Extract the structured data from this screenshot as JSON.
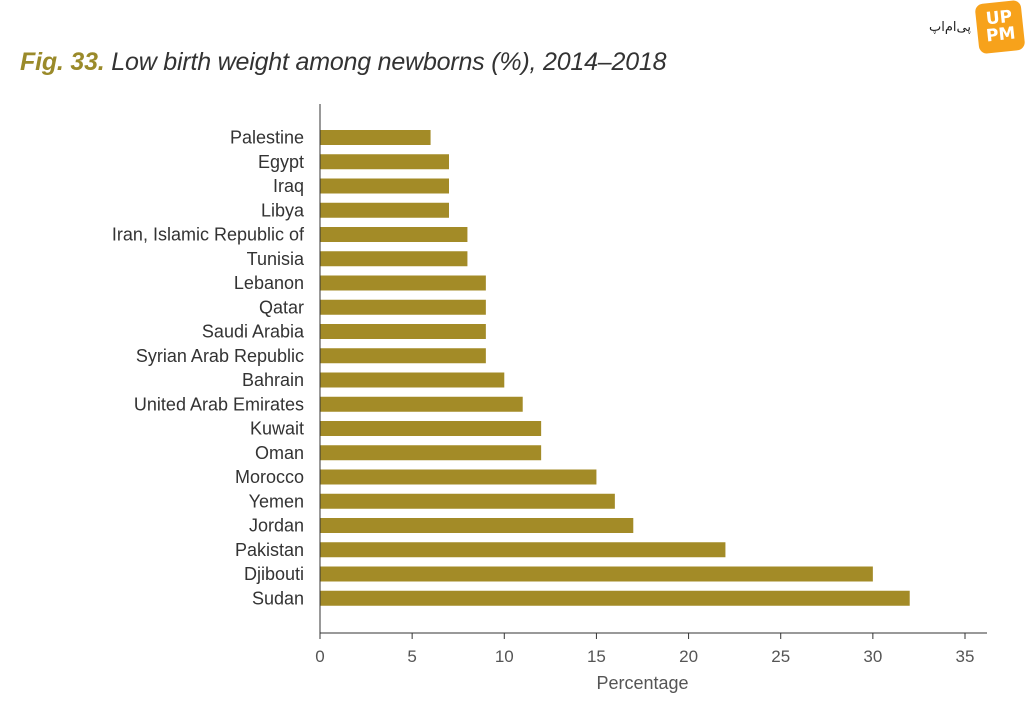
{
  "figure": {
    "label": "Fig. 33.",
    "title": "Low birth weight among newborns (%), 2014–2018"
  },
  "watermark": {
    "text": "پی‌ام‌اپ",
    "logo_line1": "UP",
    "logo_line2": "PM"
  },
  "colors": {
    "bar": "#a38b27",
    "axis": "#333333",
    "title_accent": "#9a8a2a"
  },
  "chart_data": {
    "type": "bar",
    "orientation": "horizontal",
    "title": "Low birth weight among newborns (%), 2014–2018",
    "xlabel": "Percentage",
    "ylabel": "",
    "xlim": [
      0,
      35
    ],
    "xticks": [
      0,
      5,
      10,
      15,
      20,
      25,
      30,
      35
    ],
    "grid": false,
    "categories": [
      "Palestine",
      "Egypt",
      "Iraq",
      "Libya",
      "Iran, Islamic Republic of",
      "Tunisia",
      "Lebanon",
      "Qatar",
      "Saudi Arabia",
      "Syrian Arab Republic",
      "Bahrain",
      "United Arab Emirates",
      "Kuwait",
      "Oman",
      "Morocco",
      "Yemen",
      "Jordan",
      "Pakistan",
      "Djibouti",
      "Sudan"
    ],
    "values": [
      6,
      7,
      7,
      7,
      8,
      8,
      9,
      9,
      9,
      9,
      10,
      11,
      12,
      12,
      15,
      16,
      17,
      22,
      30,
      32
    ]
  }
}
